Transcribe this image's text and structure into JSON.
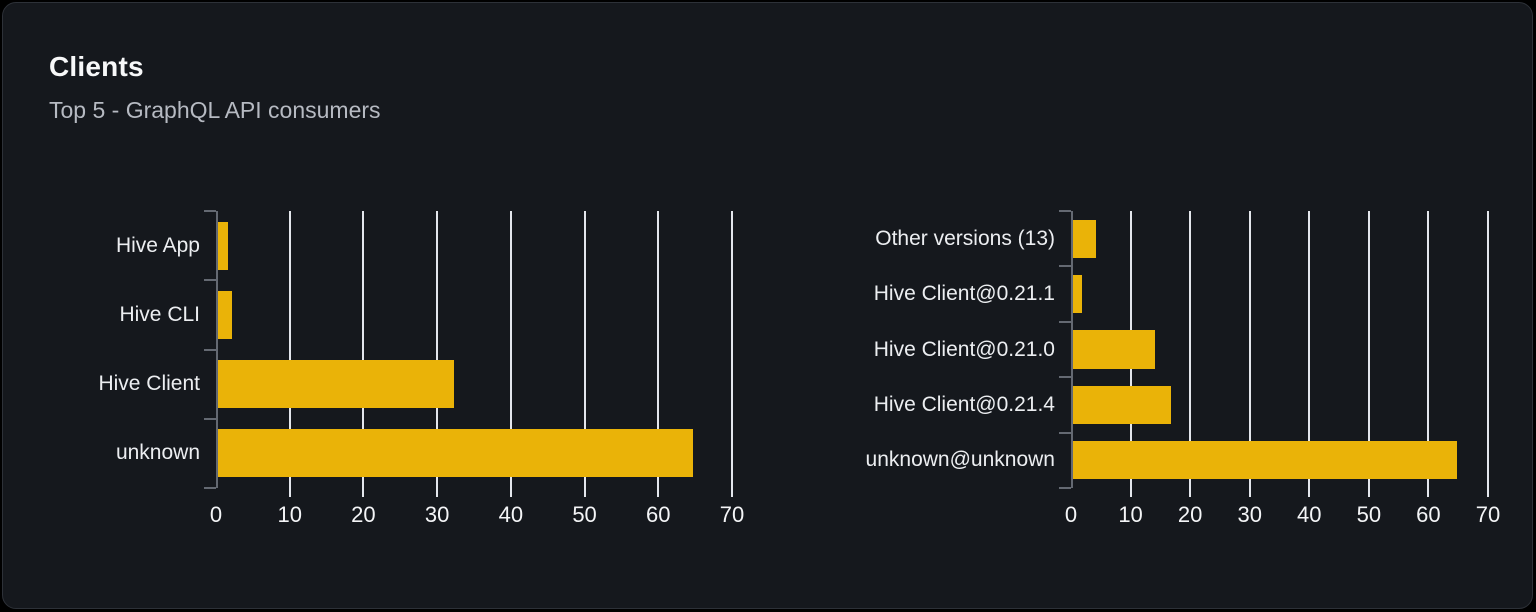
{
  "card": {
    "title": "Clients",
    "subtitle": "Top 5 - GraphQL API consumers"
  },
  "colors": {
    "bar": "#eab308",
    "gridline": "#e3e6ec",
    "axis": "#646972",
    "category_label": "#eceef1",
    "tick_label": "#f4f5f7",
    "card_background": "#15181d",
    "card_border": "#2d3138",
    "page_background": "#000000",
    "title": "#f7f8f9",
    "subtitle": "#b6bac2"
  },
  "chart_data": [
    {
      "type": "bar",
      "orientation": "horizontal",
      "name": "clients",
      "categories": [
        "Hive App",
        "Hive CLI",
        "Hive Client",
        "unknown"
      ],
      "values": [
        1.3,
        1.9,
        32,
        64.5
      ],
      "xlim": [
        0,
        70
      ],
      "xticks": [
        0,
        10,
        20,
        30,
        40,
        50,
        60,
        70
      ],
      "grid": true,
      "legend": false,
      "bar_color": "#eab308"
    },
    {
      "type": "bar",
      "orientation": "horizontal",
      "name": "client-versions",
      "categories": [
        "Other versions (13)",
        "Hive Client@0.21.1",
        "Hive Client@0.21.0",
        "Hive Client@0.21.4",
        "unknown@unknown"
      ],
      "values": [
        3.8,
        1.5,
        13.8,
        16.5,
        64.5
      ],
      "xlim": [
        0,
        70
      ],
      "xticks": [
        0,
        10,
        20,
        30,
        40,
        50,
        60,
        70
      ],
      "grid": true,
      "legend": false,
      "bar_color": "#eab308"
    }
  ]
}
